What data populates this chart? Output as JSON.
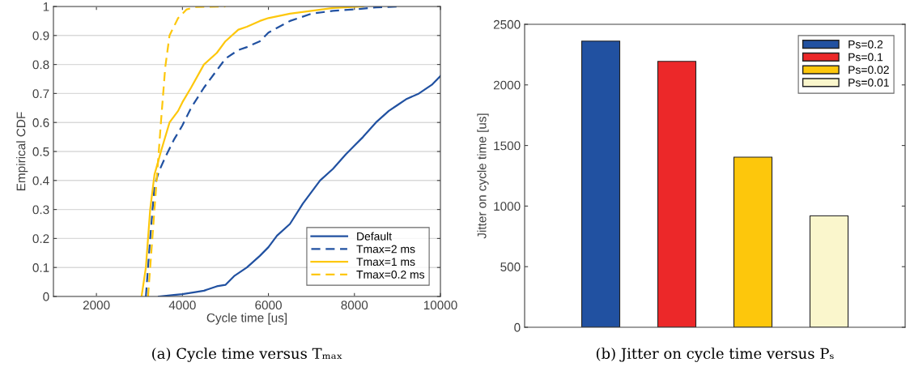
{
  "chart_data": [
    {
      "type": "line",
      "xlabel": "Cycle time [us]",
      "ylabel": "Empirical CDF",
      "xlim": [
        1000,
        10000
      ],
      "xticks": [
        2000,
        4000,
        6000,
        8000,
        10000
      ],
      "ylim": [
        0,
        1
      ],
      "yticks": [
        0,
        0.1,
        0.2,
        0.3,
        0.4,
        0.5,
        0.6,
        0.7,
        0.8,
        0.9,
        1
      ],
      "grid": "y",
      "legend": "bottom right",
      "annotations": [
        "(a) Cycle time versus Tₘₐₓ"
      ],
      "series": [
        {
          "name": "Default",
          "color": "#2151a1",
          "line_style": "solid",
          "x": [
            3450,
            3800,
            4000,
            4300,
            4500,
            4800,
            5000,
            5200,
            5500,
            5800,
            6000,
            6200,
            6500,
            6800,
            7000,
            7200,
            7500,
            7800,
            8000,
            8200,
            8500,
            8800,
            9000,
            9200,
            9500,
            9800,
            10000
          ],
          "values": [
            0,
            0.005,
            0.008,
            0.015,
            0.02,
            0.035,
            0.04,
            0.07,
            0.1,
            0.14,
            0.17,
            0.21,
            0.25,
            0.32,
            0.36,
            0.4,
            0.44,
            0.49,
            0.52,
            0.55,
            0.6,
            0.64,
            0.66,
            0.68,
            0.7,
            0.73,
            0.76
          ]
        },
        {
          "name": "Tmax=2 ms",
          "color": "#2151a1",
          "line_style": "dashed",
          "x": [
            3150,
            3250,
            3350,
            3450,
            3600,
            3800,
            4000,
            4200,
            4500,
            4800,
            5000,
            5300,
            5500,
            5800,
            6000,
            6500,
            7000,
            7500,
            8000,
            8500,
            9100
          ],
          "values": [
            0,
            0.2,
            0.38,
            0.43,
            0.48,
            0.54,
            0.59,
            0.65,
            0.72,
            0.78,
            0.82,
            0.85,
            0.86,
            0.88,
            0.91,
            0.95,
            0.975,
            0.985,
            0.99,
            0.997,
            1
          ]
        },
        {
          "name": "Tmax=1 ms",
          "color": "#fdc70c",
          "line_style": "solid",
          "x": [
            3050,
            3150,
            3250,
            3350,
            3500,
            3700,
            3900,
            4000,
            4200,
            4500,
            4800,
            5000,
            5300,
            5500,
            5800,
            6000,
            6500,
            7000,
            7500,
            8200
          ],
          "values": [
            0,
            0.1,
            0.3,
            0.42,
            0.5,
            0.6,
            0.64,
            0.67,
            0.72,
            0.8,
            0.84,
            0.88,
            0.92,
            0.93,
            0.95,
            0.96,
            0.975,
            0.985,
            0.995,
            1
          ]
        },
        {
          "name": "Tmax=0.2 ms",
          "color": "#fdc70c",
          "line_style": "dashed",
          "x": [
            3200,
            3300,
            3400,
            3500,
            3600,
            3700,
            3900,
            4100,
            4300,
            5000
          ],
          "values": [
            0,
            0.2,
            0.4,
            0.6,
            0.79,
            0.9,
            0.96,
            0.99,
            0.998,
            1
          ]
        }
      ]
    },
    {
      "type": "bar",
      "ylabel": "Jitter on cycle time [us]",
      "categories": [
        null,
        null,
        null,
        null
      ],
      "ylim": [
        0,
        2500
      ],
      "yticks": [
        0,
        500,
        1000,
        1500,
        2000,
        2500
      ],
      "legend": "top right",
      "tick_labels": "y",
      "annotations": [
        "(b) Jitter on cycle time versus Pₛ"
      ],
      "series": [
        {
          "name": "Ps=0.2",
          "color": "#2151a1",
          "values": [
            2361,
            null,
            null,
            null
          ]
        },
        {
          "name": "Ps=0.1",
          "color": "#ec2829",
          "values": [
            null,
            2194,
            null,
            null
          ]
        },
        {
          "name": "Ps=0.02",
          "color": "#fdc70c",
          "values": [
            null,
            null,
            1404,
            null
          ]
        },
        {
          "name": "Ps=0.01",
          "color": "#faf6cc",
          "values": [
            null,
            null,
            null,
            919
          ]
        }
      ]
    }
  ]
}
